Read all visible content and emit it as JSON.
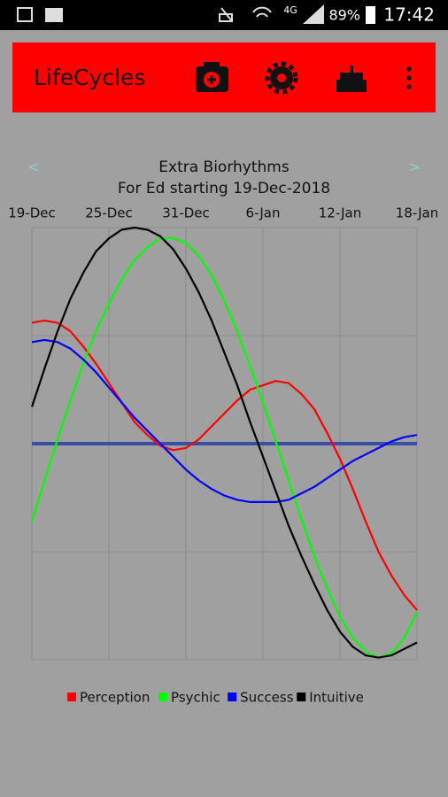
{
  "status_bar": {
    "network": "4G",
    "battery": "89%",
    "time": "17:42"
  },
  "app_bar": {
    "title": "LifeCycles"
  },
  "navigation": {
    "previous": "<",
    "next": ">"
  },
  "chart_data": {
    "type": "line",
    "title": "Extra Biorhythms",
    "subtitle": "For Ed starting 19-Dec-2018",
    "x": [
      "19-Dec",
      "20-Dec",
      "21-Dec",
      "22-Dec",
      "23-Dec",
      "24-Dec",
      "25-Dec",
      "26-Dec",
      "27-Dec",
      "28-Dec",
      "29-Dec",
      "30-Dec",
      "31-Dec",
      "1-Jan",
      "2-Jan",
      "3-Jan",
      "4-Jan",
      "5-Jan",
      "6-Jan",
      "7-Jan",
      "8-Jan",
      "9-Jan",
      "10-Jan",
      "11-Jan",
      "12-Jan",
      "13-Jan",
      "14-Jan",
      "15-Jan",
      "16-Jan",
      "17-Jan",
      "18-Jan"
    ],
    "xticks": [
      "19-Dec",
      "25-Dec",
      "31-Dec",
      "6-Jan",
      "12-Jan",
      "18-Jan"
    ],
    "ylim": [
      -1,
      1
    ],
    "yticks": [
      -1,
      -0.5,
      0,
      0.5,
      1
    ],
    "show_ytick_labels": false,
    "grid": true,
    "legend": "bottom",
    "series": [
      {
        "name": "Perception",
        "color": "#ff0000",
        "values": [
          0.56,
          0.57,
          0.56,
          0.52,
          0.45,
          0.37,
          0.28,
          0.19,
          0.1,
          0.04,
          -0.01,
          -0.03,
          -0.02,
          0.02,
          0.08,
          0.14,
          0.2,
          0.25,
          0.27,
          0.29,
          0.28,
          0.23,
          0.16,
          0.05,
          -0.07,
          -0.21,
          -0.36,
          -0.5,
          -0.61,
          -0.7,
          -0.77
        ]
      },
      {
        "name": "Psychic",
        "color": "#00ff00",
        "values": [
          -0.36,
          -0.17,
          0.02,
          0.2,
          0.37,
          0.52,
          0.65,
          0.76,
          0.85,
          0.91,
          0.95,
          0.95,
          0.93,
          0.87,
          0.78,
          0.66,
          0.52,
          0.36,
          0.19,
          0.01,
          -0.17,
          -0.35,
          -0.52,
          -0.67,
          -0.8,
          -0.9,
          -0.96,
          -0.99,
          -0.97,
          -0.9,
          -0.78
        ]
      },
      {
        "name": "Success",
        "color": "#0000ff",
        "values": [
          0.47,
          0.48,
          0.47,
          0.44,
          0.39,
          0.33,
          0.26,
          0.19,
          0.12,
          0.06,
          0.0,
          -0.06,
          -0.12,
          -0.17,
          -0.21,
          -0.24,
          -0.26,
          -0.27,
          -0.27,
          -0.27,
          -0.26,
          -0.23,
          -0.2,
          -0.16,
          -0.12,
          -0.08,
          -0.05,
          -0.02,
          0.01,
          0.03,
          0.04
        ]
      },
      {
        "name": "Intuitive",
        "color": "#000000",
        "values": [
          0.17,
          0.35,
          0.52,
          0.67,
          0.79,
          0.89,
          0.95,
          0.99,
          1.0,
          0.99,
          0.96,
          0.9,
          0.81,
          0.7,
          0.57,
          0.42,
          0.27,
          0.1,
          -0.06,
          -0.22,
          -0.38,
          -0.52,
          -0.65,
          -0.77,
          -0.87,
          -0.94,
          -0.98,
          -0.99,
          -0.98,
          -0.95,
          -0.92
        ]
      }
    ]
  }
}
